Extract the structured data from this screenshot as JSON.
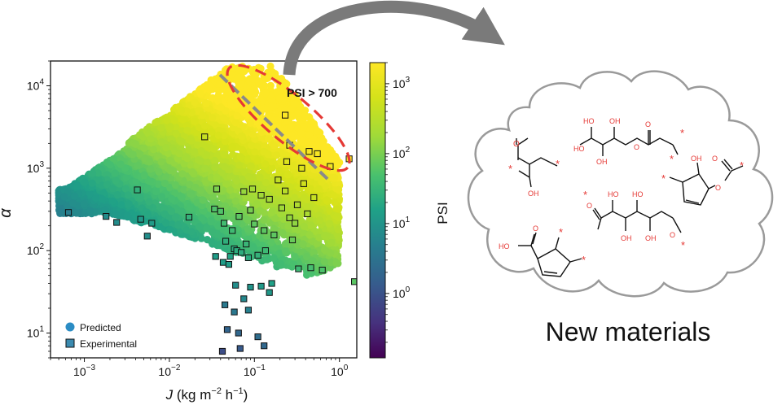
{
  "chart_data": {
    "type": "scatter",
    "xlabel_var": "J",
    "xlabel_units": "(kg m",
    "xlabel_sup1": "−2",
    "xlabel_mid": " h",
    "xlabel_sup2": "−1",
    "xlabel_end": ")",
    "ylabel": "α",
    "xscale": "log",
    "yscale": "log",
    "xlim": [
      0.0004,
      1.6
    ],
    "ylim": [
      5,
      20000
    ],
    "x_ticks": [
      {
        "base": "10",
        "exp": "−3",
        "value": 0.001
      },
      {
        "base": "10",
        "exp": "−2",
        "value": 0.01
      },
      {
        "base": "10",
        "exp": "−1",
        "value": 0.1
      },
      {
        "base": "10",
        "exp": "0",
        "value": 1
      }
    ],
    "y_ticks": [
      {
        "base": "10",
        "exp": "1",
        "value": 10
      },
      {
        "base": "10",
        "exp": "2",
        "value": 100
      },
      {
        "base": "10",
        "exp": "3",
        "value": 1000
      },
      {
        "base": "10",
        "exp": "4",
        "value": 10000
      }
    ],
    "colorbar": {
      "label": "PSI",
      "range": [
        0.12,
        2000
      ],
      "ticks": [
        {
          "base": "10",
          "exp": "0",
          "value": 1
        },
        {
          "base": "10",
          "exp": "1",
          "value": 10
        },
        {
          "base": "10",
          "exp": "2",
          "value": 100
        },
        {
          "base": "10",
          "exp": "3",
          "value": 1000
        }
      ]
    },
    "legend": {
      "placement": "lower-left",
      "entries": [
        {
          "label": "Predicted",
          "marker": "circle"
        },
        {
          "label": "Experimental",
          "marker": "square"
        }
      ]
    },
    "annotation": {
      "text": "PSI > 700",
      "color": "#e53935"
    },
    "experimental_points": [
      [
        0.00065,
        290
      ],
      [
        0.0018,
        260
      ],
      [
        0.0024,
        220
      ],
      [
        0.0042,
        545
      ],
      [
        0.0046,
        240
      ],
      [
        0.0055,
        150
      ],
      [
        0.0062,
        215
      ],
      [
        0.017,
        255
      ],
      [
        0.026,
        2400
      ],
      [
        0.034,
        320
      ],
      [
        0.036,
        560
      ],
      [
        0.04,
        300
      ],
      [
        0.044,
        215
      ],
      [
        0.046,
        130
      ],
      [
        0.052,
        85
      ],
      [
        0.055,
        175
      ],
      [
        0.058,
        105
      ],
      [
        0.062,
        100
      ],
      [
        0.066,
        260
      ],
      [
        0.07,
        95
      ],
      [
        0.075,
        520
      ],
      [
        0.08,
        120
      ],
      [
        0.085,
        82
      ],
      [
        0.09,
        310
      ],
      [
        0.095,
        560
      ],
      [
        0.1,
        210
      ],
      [
        0.11,
        88
      ],
      [
        0.12,
        470
      ],
      [
        0.13,
        175
      ],
      [
        0.135,
        100
      ],
      [
        0.15,
        420
      ],
      [
        0.17,
        155
      ],
      [
        0.19,
        720
      ],
      [
        0.21,
        330
      ],
      [
        0.23,
        530
      ],
      [
        0.24,
        1200
      ],
      [
        0.26,
        250
      ],
      [
        0.28,
        135
      ],
      [
        0.3,
        215
      ],
      [
        0.33,
        60
      ],
      [
        0.36,
        1000
      ],
      [
        0.38,
        650
      ],
      [
        0.42,
        280
      ],
      [
        0.46,
        62
      ],
      [
        0.5,
        440
      ],
      [
        0.55,
        1500
      ],
      [
        0.63,
        58
      ],
      [
        0.32,
        360
      ],
      [
        0.035,
        85
      ],
      [
        0.043,
        72
      ],
      [
        0.05,
        68
      ],
      [
        0.06,
        38
      ],
      [
        0.09,
        36
      ],
      [
        0.12,
        37
      ],
      [
        0.15,
        31
      ],
      [
        0.16,
        40
      ],
      [
        0.045,
        22
      ],
      [
        0.058,
        18
      ],
      [
        0.075,
        26
      ],
      [
        0.085,
        19
      ],
      [
        0.048,
        11
      ],
      [
        0.065,
        10
      ],
      [
        0.11,
        9
      ],
      [
        0.042,
        6
      ],
      [
        0.068,
        6.5
      ],
      [
        0.44,
        1600
      ],
      [
        0.78,
        1050
      ],
      [
        1.3,
        1300
      ],
      [
        1.5,
        42
      ],
      [
        0.23,
        4400
      ],
      [
        0.26,
        1900
      ],
      [
        0.13,
        7
      ]
    ]
  },
  "right_panel": {
    "caption": "New materials",
    "atom_OH": "OH",
    "atom_HO": "HO",
    "atom_O": "O",
    "atom_star": "*"
  }
}
